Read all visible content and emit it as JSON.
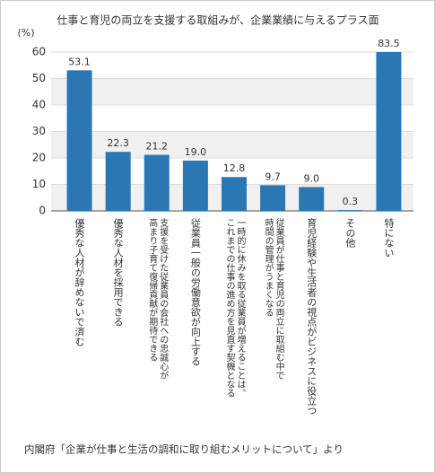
{
  "chart_data": {
    "type": "bar",
    "title": "仕事と育児の両立を支援する取組みが、企業業績に与えるプラス面",
    "y_label": "(%)",
    "source": "内閣府「企業が仕事と生活の調和に取り組むメリットについて」より",
    "categories": [
      "優秀な人材が辞めないで済む",
      "優秀な人材を採用できる",
      "支援を受けた従業員の会社への忠誠心が\n高まり子育て復帰貢献が期待できる",
      "従業員一般の労働意欲が向上する",
      "一時的に休みを取る従業員が増えることは、\nこれまでの仕事の進め方を見直す契機となる",
      "従業員が仕事と育児の両立に取組む中で\n時間の管理がうまくなる",
      "育児経験や生活者の視点がビジネスに役立つ",
      "その他",
      "特にない"
    ],
    "values": [
      53.1,
      22.3,
      21.2,
      19.0,
      12.8,
      9.7,
      9.0,
      0.3,
      83.5
    ],
    "value_labels": [
      "53.1",
      "22.3",
      "21.2",
      "19.0",
      "12.8",
      "9.7",
      "9.0",
      "0.3",
      "83.5"
    ],
    "color": "#2a77b4",
    "ylim": [
      0,
      60
    ],
    "yticks": [
      0,
      10,
      20,
      30,
      40,
      50,
      60
    ],
    "grid": true
  }
}
